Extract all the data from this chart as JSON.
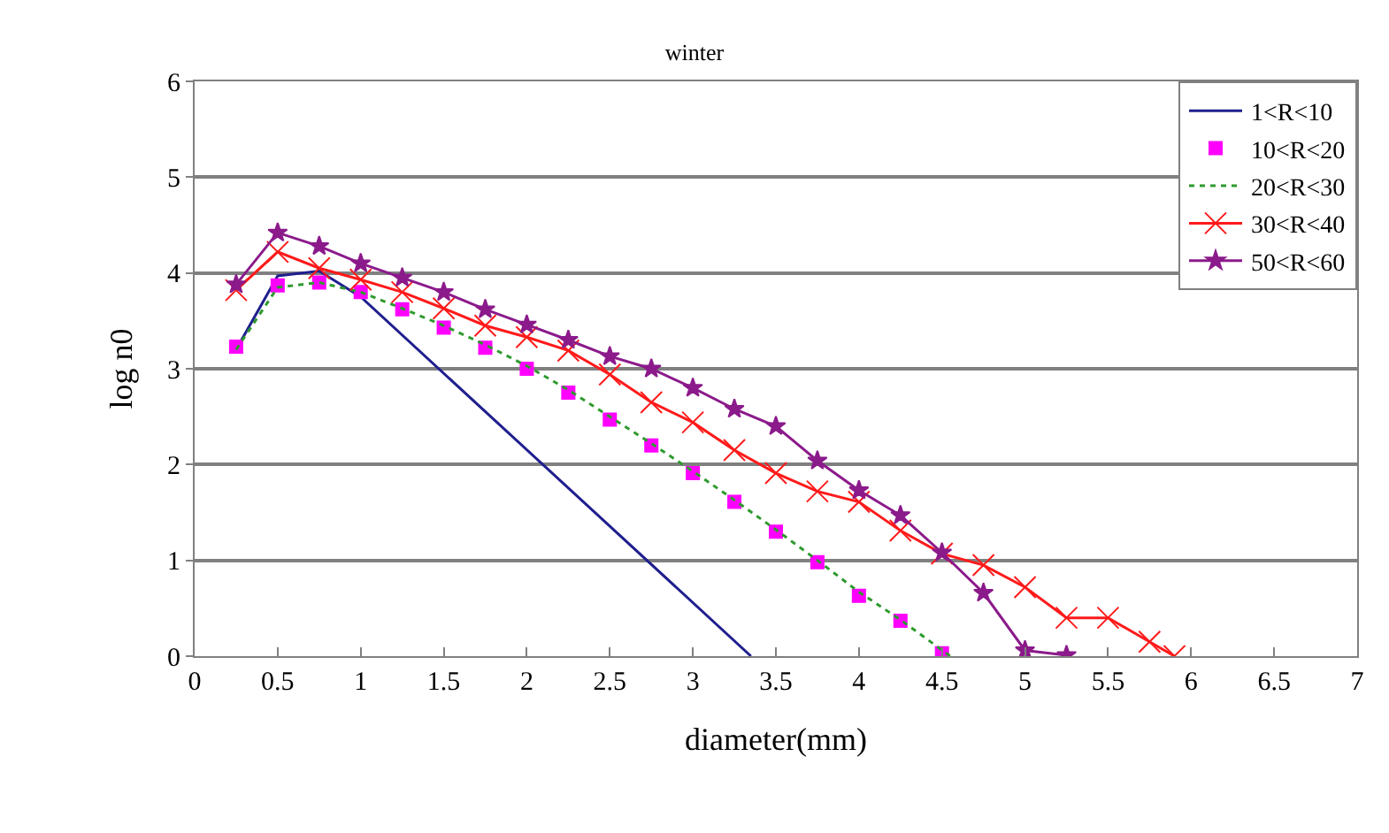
{
  "chart_data": {
    "type": "line",
    "title": "winter",
    "xlabel": "diameter(mm)",
    "ylabel": "log n0",
    "xlim": [
      0,
      7
    ],
    "xticks": [
      0,
      0.5,
      1,
      1.5,
      2,
      2.5,
      3,
      3.5,
      4,
      4.5,
      5,
      5.5,
      6,
      6.5,
      7
    ],
    "ylim": [
      0,
      6
    ],
    "yticks": [
      0,
      1,
      2,
      3,
      4,
      5,
      6
    ],
    "grid": "y",
    "legend": "top right",
    "series": [
      {
        "name": "1<R<10",
        "color": "#1f1f8f",
        "marker": "none",
        "line_style": "solid",
        "x": [
          0.25,
          0.5,
          0.75,
          1.0,
          3.35
        ],
        "values": [
          3.2,
          3.97,
          4.02,
          3.75,
          0
        ]
      },
      {
        "name": "10<R<20",
        "type": "scatter",
        "color": "#ff00ff",
        "marker": "square",
        "x": [
          0.25,
          0.5,
          0.75,
          1.0,
          1.25,
          1.5,
          1.75,
          2.0,
          2.25,
          2.5,
          2.75,
          3.0,
          3.25,
          3.5,
          3.75,
          4.0,
          4.25,
          4.5
        ],
        "values": [
          3.23,
          3.87,
          3.9,
          3.8,
          3.62,
          3.43,
          3.22,
          3.0,
          2.75,
          2.47,
          2.2,
          1.91,
          1.61,
          1.3,
          0.98,
          0.63,
          0.37,
          0.03
        ]
      },
      {
        "name": "20<R<30",
        "color": "#2e9a2e",
        "marker": "none",
        "line_style": "dotted",
        "x": [
          0.25,
          0.5,
          0.75,
          1.0,
          1.25,
          1.5,
          1.75,
          2.0,
          2.25,
          2.5,
          2.75,
          3.0,
          3.25,
          3.5,
          3.75,
          4.0,
          4.25,
          4.55
        ],
        "values": [
          3.2,
          3.85,
          3.9,
          3.8,
          3.63,
          3.45,
          3.25,
          3.03,
          2.78,
          2.5,
          2.22,
          1.93,
          1.63,
          1.32,
          1.0,
          0.67,
          0.38,
          0
        ]
      },
      {
        "name": "30<R<40",
        "color": "#ff1a1a",
        "marker": "cross",
        "line_style": "solid",
        "x": [
          0.25,
          0.5,
          0.75,
          1.0,
          1.25,
          1.5,
          1.75,
          2.0,
          2.25,
          2.5,
          2.75,
          3.0,
          3.25,
          3.5,
          3.75,
          4.0,
          4.25,
          4.5,
          4.75,
          5.0,
          5.25,
          5.5,
          5.75,
          5.9
        ],
        "values": [
          3.82,
          4.22,
          4.05,
          3.93,
          3.8,
          3.63,
          3.45,
          3.33,
          3.19,
          2.94,
          2.65,
          2.44,
          2.15,
          1.91,
          1.72,
          1.61,
          1.31,
          1.07,
          0.95,
          0.72,
          0.4,
          0.4,
          0.15,
          0
        ]
      },
      {
        "name": "50<R<60",
        "color": "#8b1a8b",
        "marker": "star",
        "line_style": "solid",
        "x": [
          0.25,
          0.5,
          0.75,
          1.0,
          1.25,
          1.5,
          1.75,
          2.0,
          2.25,
          2.5,
          2.75,
          3.0,
          3.25,
          3.5,
          3.75,
          4.0,
          4.25,
          4.5,
          4.75,
          5.0,
          5.25
        ],
        "values": [
          3.88,
          4.42,
          4.28,
          4.1,
          3.95,
          3.8,
          3.62,
          3.46,
          3.3,
          3.13,
          3.0,
          2.8,
          2.58,
          2.4,
          2.04,
          1.73,
          1.47,
          1.08,
          0.66,
          0.06,
          0.01
        ]
      }
    ]
  }
}
